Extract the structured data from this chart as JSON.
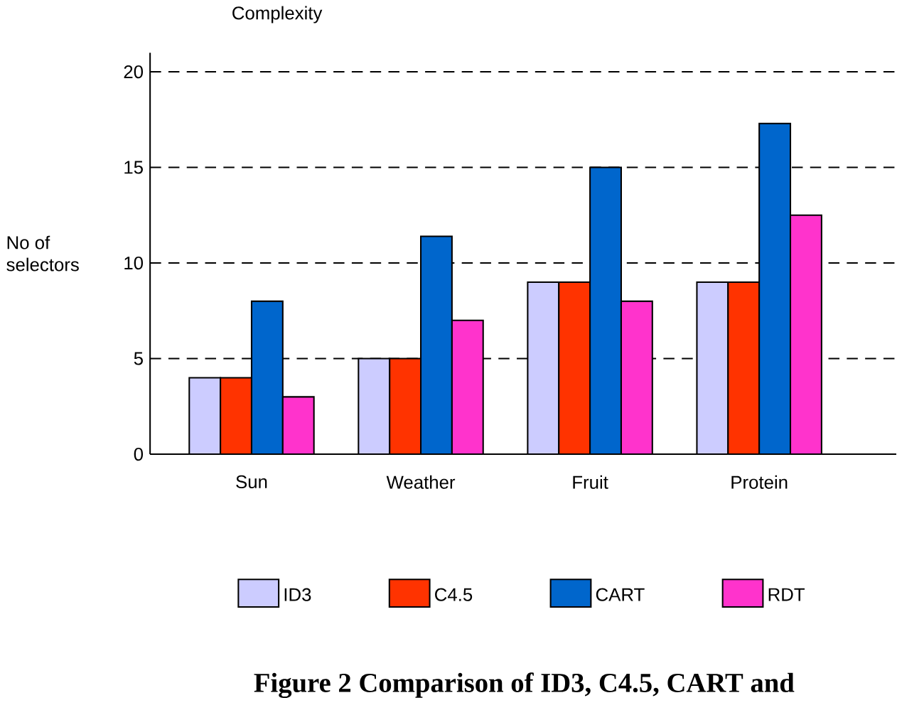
{
  "chart_data": {
    "type": "bar",
    "title": "Complexity",
    "ylabel": "No of selectors",
    "annotations": [
      "Figure 2 Comparison of ID3, C4.5, CART and"
    ],
    "categories": [
      "Sun",
      "Weather",
      "Fruit",
      "Protein"
    ],
    "series": [
      {
        "name": "ID3",
        "color": "#ccccff",
        "values": [
          4,
          5,
          9,
          9
        ]
      },
      {
        "name": "C4.5",
        "color": "#ff3300",
        "values": [
          4,
          5,
          9,
          9
        ]
      },
      {
        "name": "CART",
        "color": "#0066cc",
        "values": [
          8,
          11.4,
          15,
          17.3
        ]
      },
      {
        "name": "RDT",
        "color": "#ff33cc",
        "values": [
          3,
          7,
          8,
          12.5
        ]
      }
    ],
    "ylim": [
      0,
      21
    ],
    "yticks": [
      0,
      5,
      10,
      15,
      20
    ],
    "grid": "y",
    "legend": "bottom"
  }
}
